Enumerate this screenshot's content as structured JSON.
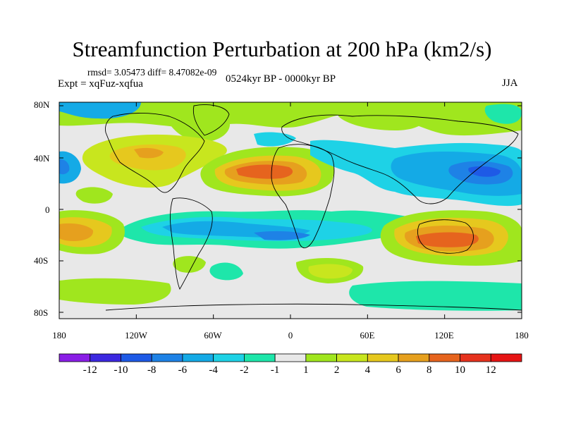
{
  "title": "Streamfunction Perturbation at 200 hPa (km2/s)",
  "rmsd_line": "rmsd= 3.05473 diff= 8.47082e-09",
  "expt_line": "Expt = xqFuz-xqfua",
  "period": "0524kyr BP - 0000kyr BP",
  "season": "JJA",
  "lat_labels": [
    "80N",
    "40N",
    "0",
    "40S",
    "80S"
  ],
  "lon_labels": [
    "180",
    "120W",
    "60W",
    "0",
    "60E",
    "120E",
    "180"
  ],
  "colorbar": {
    "labels": [
      "-12",
      "-10",
      "-8",
      "-6",
      "-4",
      "-2",
      "-1",
      "1",
      "2",
      "4",
      "6",
      "8",
      "10",
      "12"
    ],
    "colors": [
      "#8a1ee6",
      "#3c28e0",
      "#1e5ae6",
      "#1e82e6",
      "#14aae6",
      "#1ed2e6",
      "#1ee6aa",
      "#e8e8e8",
      "#a0e61e",
      "#c8e61e",
      "#e6c81e",
      "#e6a01e",
      "#e6641e",
      "#e6321e",
      "#e61414"
    ]
  }
}
